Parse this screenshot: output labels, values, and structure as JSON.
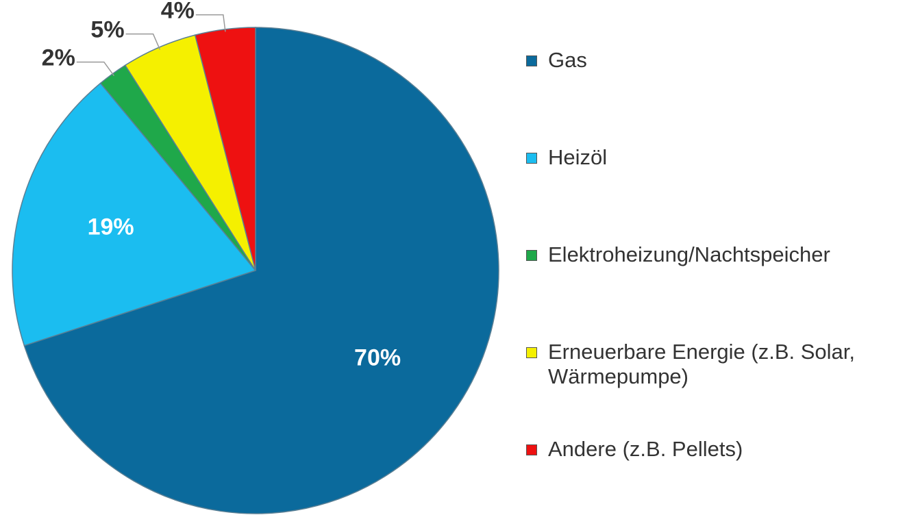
{
  "chart_data": {
    "type": "pie",
    "categories": [
      "Gas",
      "Heizöl",
      "Elektroheizung/Nachtspeicher",
      "Erneuerbare Energie (z.B. Solar, Wärmepumpe)",
      "Andere (z.B. Pellets)"
    ],
    "values": [
      70,
      19,
      2,
      5,
      4
    ],
    "value_labels": [
      "70%",
      "19%",
      "2%",
      "5%",
      "4%"
    ],
    "colors": [
      "#0b6a9c",
      "#1bbdf0",
      "#1fa84a",
      "#f5f000",
      "#ee1111"
    ],
    "legend": "right"
  }
}
